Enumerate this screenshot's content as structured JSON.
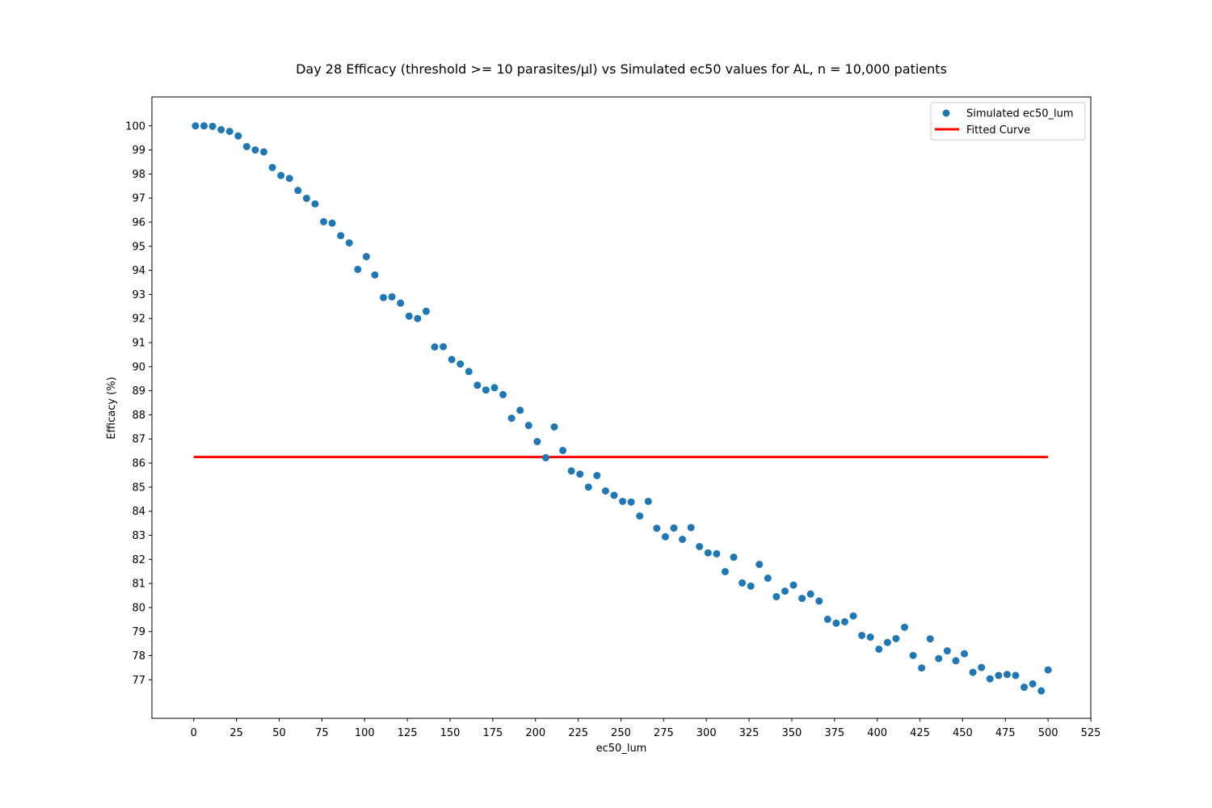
{
  "chart_data": {
    "type": "scatter",
    "title": "Day 28 Efficacy (threshold >= 10 parasites/µl) vs Simulated ec50 values for AL, n = 10,000 patients",
    "xlabel": "ec50_lum",
    "ylabel": "Efficacy (%)",
    "xlim": [
      -24.5,
      525
    ],
    "ylim": [
      75.4,
      101.2
    ],
    "x_ticks": [
      0,
      25,
      50,
      75,
      100,
      125,
      150,
      175,
      200,
      225,
      250,
      275,
      300,
      325,
      350,
      375,
      400,
      425,
      450,
      475,
      500,
      525
    ],
    "y_ticks": [
      77,
      78,
      79,
      80,
      81,
      82,
      83,
      84,
      85,
      86,
      87,
      88,
      89,
      90,
      91,
      92,
      93,
      94,
      95,
      96,
      97,
      98,
      99,
      100
    ],
    "grid": false,
    "legend_position": "top-right",
    "colors": {
      "scatter": "#1f77b4",
      "fit": "#ff0000"
    },
    "series": [
      {
        "name": "Simulated ec50_lum",
        "kind": "scatter",
        "x": [
          1,
          6,
          11,
          16,
          21,
          26,
          31,
          36,
          41,
          46,
          51,
          56,
          61,
          66,
          71,
          76,
          81,
          86,
          91,
          96,
          101,
          106,
          111,
          116,
          121,
          126,
          131,
          136,
          141,
          146,
          151,
          156,
          161,
          166,
          171,
          176,
          181,
          186,
          191,
          196,
          201,
          206,
          211,
          216,
          221,
          226,
          231,
          236,
          241,
          246,
          251,
          256,
          261,
          266,
          271,
          276,
          281,
          286,
          291,
          296,
          301,
          306,
          311,
          316,
          321,
          326,
          331,
          336,
          341,
          346,
          351,
          356,
          361,
          366,
          371,
          376,
          381,
          386,
          391,
          396,
          401,
          406,
          411,
          416,
          421,
          426,
          431,
          436,
          441,
          446,
          451,
          456,
          461,
          466,
          471,
          476,
          481,
          486,
          491,
          496,
          500
        ],
        "y": [
          100,
          100,
          99.98,
          99.84,
          99.77,
          99.58,
          99.14,
          99.0,
          98.92,
          98.27,
          97.94,
          97.82,
          97.32,
          96.99,
          96.76,
          96.02,
          95.96,
          95.44,
          95.14,
          94.04,
          94.57,
          93.81,
          92.87,
          92.9,
          92.64,
          92.1,
          92.0,
          92.3,
          90.82,
          90.83,
          90.3,
          90.11,
          89.8,
          89.23,
          89.03,
          89.13,
          88.84,
          87.86,
          88.19,
          87.56,
          86.89,
          86.22,
          87.5,
          86.52,
          85.67,
          85.54,
          85.0,
          85.48,
          84.84,
          84.66,
          84.41,
          84.38,
          83.8,
          84.41,
          83.29,
          82.94,
          83.3,
          82.83,
          83.32,
          82.53,
          82.27,
          82.23,
          81.49,
          82.09,
          81.02,
          80.89,
          81.79,
          81.22,
          80.45,
          80.68,
          80.93,
          80.38,
          80.56,
          80.27,
          79.51,
          79.35,
          79.41,
          79.65,
          78.84,
          78.77,
          78.27,
          78.55,
          78.71,
          79.18,
          78.01,
          77.49,
          78.7,
          77.88,
          78.2,
          77.79,
          78.08,
          77.31,
          77.51,
          77.04,
          77.18,
          77.22,
          77.18,
          76.69,
          76.83,
          76.54,
          77.41
        ]
      },
      {
        "name": "Fitted Curve",
        "kind": "line",
        "x": [
          0,
          500
        ],
        "y": [
          86.25,
          86.25
        ]
      }
    ]
  }
}
